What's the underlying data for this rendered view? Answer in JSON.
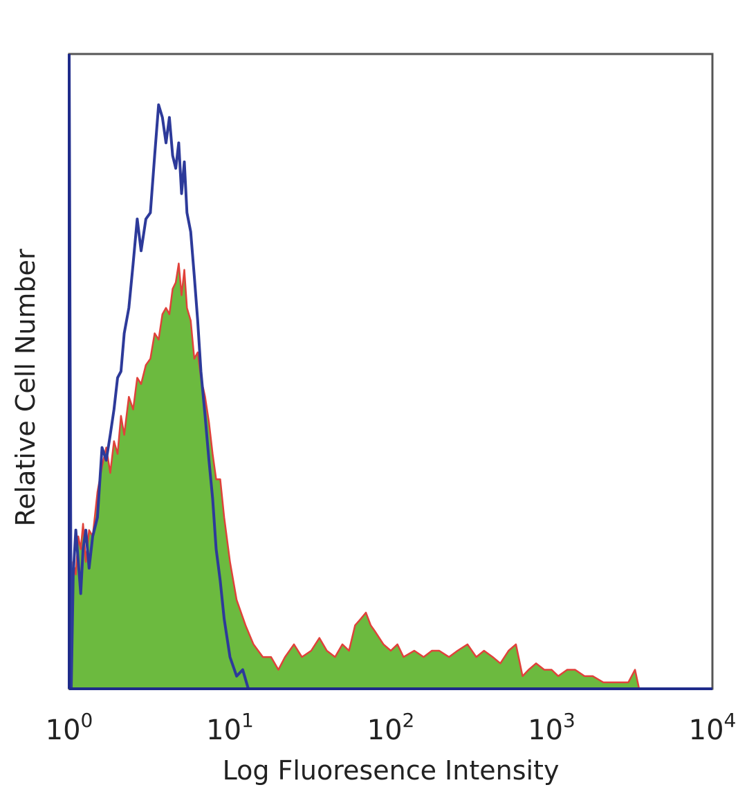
{
  "chart_data": {
    "type": "area",
    "title": "",
    "xlabel": "Log Fluoresence Intensity",
    "ylabel": "Relative Cell Number",
    "x_scale": "log",
    "xlim": [
      1,
      10000
    ],
    "ylim": [
      0,
      100
    ],
    "x_ticks": [
      {
        "base": "10",
        "exp": "0",
        "value": 1
      },
      {
        "base": "10",
        "exp": "1",
        "value": 10
      },
      {
        "base": "10",
        "exp": "2",
        "value": 100
      },
      {
        "base": "10",
        "exp": "3",
        "value": 1000
      },
      {
        "base": "10",
        "exp": "4",
        "value": 10000
      }
    ],
    "grid": false,
    "legend": "none",
    "series": [
      {
        "style": "filled",
        "fill_color": "#6cba3f",
        "line_color": "#e0413a",
        "points": [
          [
            1.0,
            100
          ],
          [
            1.03,
            0
          ],
          [
            1.06,
            20
          ],
          [
            1.1,
            18
          ],
          [
            1.14,
            24
          ],
          [
            1.18,
            22
          ],
          [
            1.22,
            26
          ],
          [
            1.27,
            20
          ],
          [
            1.33,
            25
          ],
          [
            1.4,
            24
          ],
          [
            1.5,
            31
          ],
          [
            1.6,
            35
          ],
          [
            1.7,
            38
          ],
          [
            1.8,
            34
          ],
          [
            1.9,
            39
          ],
          [
            2.0,
            37
          ],
          [
            2.1,
            43
          ],
          [
            2.2,
            40
          ],
          [
            2.35,
            46
          ],
          [
            2.5,
            44
          ],
          [
            2.65,
            49
          ],
          [
            2.8,
            48
          ],
          [
            3.0,
            51
          ],
          [
            3.2,
            52
          ],
          [
            3.4,
            56
          ],
          [
            3.6,
            55
          ],
          [
            3.8,
            59
          ],
          [
            4.0,
            60
          ],
          [
            4.2,
            59
          ],
          [
            4.4,
            63
          ],
          [
            4.6,
            64
          ],
          [
            4.8,
            67
          ],
          [
            5.0,
            62
          ],
          [
            5.2,
            66
          ],
          [
            5.4,
            60
          ],
          [
            5.7,
            58
          ],
          [
            6.0,
            52
          ],
          [
            6.3,
            53
          ],
          [
            6.6,
            49
          ],
          [
            7.0,
            46
          ],
          [
            7.4,
            42
          ],
          [
            7.8,
            37
          ],
          [
            8.2,
            33
          ],
          [
            8.7,
            33
          ],
          [
            9.2,
            27
          ],
          [
            10.0,
            20
          ],
          [
            11.0,
            14
          ],
          [
            12.5,
            10
          ],
          [
            14.0,
            7
          ],
          [
            16.0,
            5
          ],
          [
            18.0,
            5
          ],
          [
            20.0,
            3
          ],
          [
            22.0,
            5
          ],
          [
            25.0,
            7
          ],
          [
            28.0,
            5
          ],
          [
            32.0,
            6
          ],
          [
            36.0,
            8
          ],
          [
            40.0,
            6
          ],
          [
            45.0,
            5
          ],
          [
            50.0,
            7
          ],
          [
            55.0,
            6
          ],
          [
            60.0,
            10
          ],
          [
            65.0,
            11
          ],
          [
            70.0,
            12
          ],
          [
            75.0,
            10
          ],
          [
            80.0,
            9
          ],
          [
            90.0,
            7
          ],
          [
            100.0,
            6
          ],
          [
            110.0,
            7
          ],
          [
            120.0,
            5
          ],
          [
            140.0,
            6
          ],
          [
            160.0,
            5
          ],
          [
            180.0,
            6
          ],
          [
            200.0,
            6
          ],
          [
            230.0,
            5
          ],
          [
            260.0,
            6
          ],
          [
            300.0,
            7
          ],
          [
            340.0,
            5
          ],
          [
            380.0,
            6
          ],
          [
            430.0,
            5
          ],
          [
            480.0,
            4
          ],
          [
            540.0,
            6
          ],
          [
            600.0,
            7
          ],
          [
            660.0,
            2
          ],
          [
            720.0,
            3
          ],
          [
            800.0,
            4
          ],
          [
            900.0,
            3
          ],
          [
            1000.0,
            3
          ],
          [
            1100.0,
            2
          ],
          [
            1250.0,
            3
          ],
          [
            1400.0,
            3
          ],
          [
            1600.0,
            2
          ],
          [
            1800.0,
            2
          ],
          [
            2100.0,
            1
          ],
          [
            2500.0,
            1
          ],
          [
            3000.0,
            1
          ],
          [
            3300.0,
            3
          ],
          [
            3500.0,
            0
          ],
          [
            10000.0,
            0
          ]
        ]
      },
      {
        "style": "line",
        "line_color": "#2d3a9a",
        "points": [
          [
            1.0,
            100
          ],
          [
            1.03,
            0
          ],
          [
            1.06,
            18
          ],
          [
            1.1,
            25
          ],
          [
            1.14,
            20
          ],
          [
            1.18,
            15
          ],
          [
            1.22,
            22
          ],
          [
            1.27,
            25
          ],
          [
            1.33,
            19
          ],
          [
            1.4,
            24
          ],
          [
            1.5,
            27
          ],
          [
            1.6,
            38
          ],
          [
            1.7,
            36
          ],
          [
            1.8,
            40
          ],
          [
            1.9,
            44
          ],
          [
            2.0,
            49
          ],
          [
            2.1,
            50
          ],
          [
            2.2,
            56
          ],
          [
            2.35,
            60
          ],
          [
            2.5,
            67
          ],
          [
            2.65,
            74
          ],
          [
            2.8,
            69
          ],
          [
            3.0,
            74
          ],
          [
            3.2,
            75
          ],
          [
            3.4,
            84
          ],
          [
            3.6,
            92
          ],
          [
            3.8,
            90
          ],
          [
            4.0,
            86
          ],
          [
            4.2,
            90
          ],
          [
            4.4,
            84
          ],
          [
            4.6,
            82
          ],
          [
            4.8,
            86
          ],
          [
            5.0,
            78
          ],
          [
            5.2,
            83
          ],
          [
            5.4,
            75
          ],
          [
            5.7,
            72
          ],
          [
            6.0,
            65
          ],
          [
            6.3,
            58
          ],
          [
            6.6,
            50
          ],
          [
            7.0,
            43
          ],
          [
            7.4,
            36
          ],
          [
            7.8,
            30
          ],
          [
            8.2,
            22
          ],
          [
            8.7,
            17
          ],
          [
            9.2,
            11
          ],
          [
            10.0,
            5
          ],
          [
            11.0,
            2
          ],
          [
            12.0,
            3
          ],
          [
            13.0,
            0
          ],
          [
            10000.0,
            0
          ]
        ]
      }
    ]
  }
}
